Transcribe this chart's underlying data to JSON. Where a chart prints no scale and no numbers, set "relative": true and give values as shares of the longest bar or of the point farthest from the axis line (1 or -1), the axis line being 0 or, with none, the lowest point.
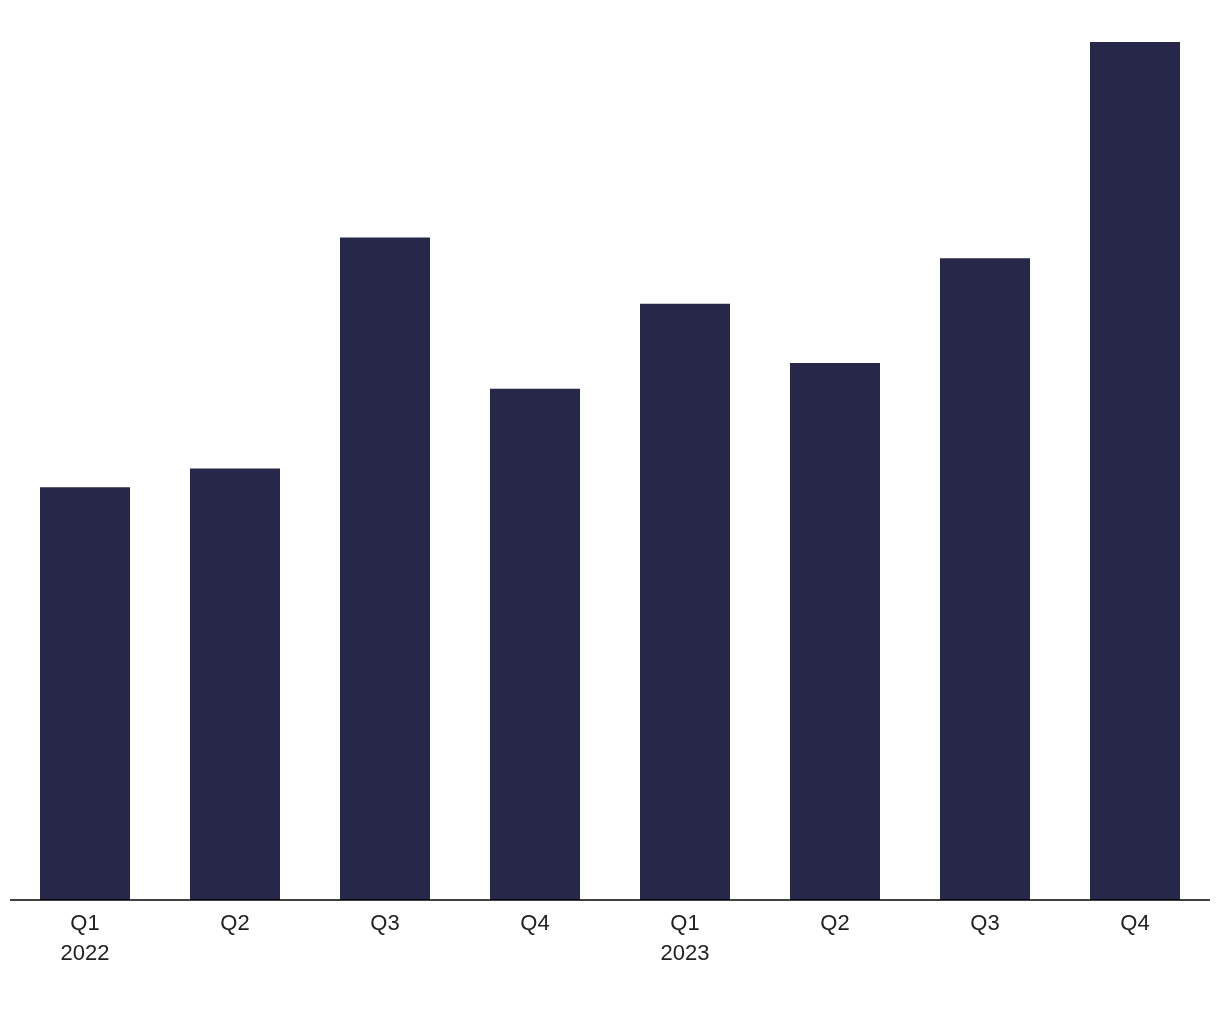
{
  "chart_data": {
    "type": "bar",
    "relative": true,
    "categories": [
      "Q1\n2022",
      "Q2",
      "Q3",
      "Q4",
      "Q1\n2023",
      "Q2",
      "Q3",
      "Q4"
    ],
    "values": [
      0.481,
      0.503,
      0.772,
      0.596,
      0.695,
      0.626,
      0.748,
      1
    ],
    "color": "#272849",
    "grid": false,
    "legend": false
  }
}
